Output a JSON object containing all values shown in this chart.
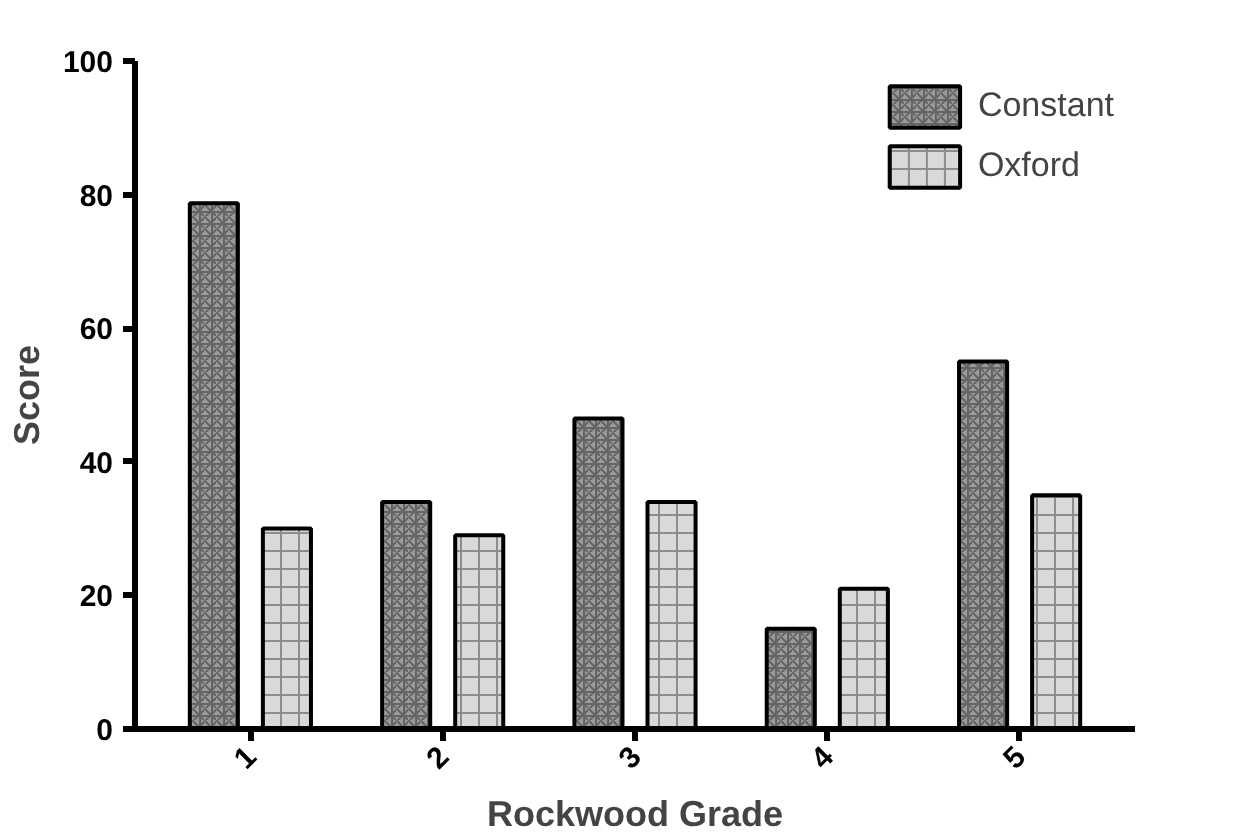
{
  "chart_data": {
    "type": "bar",
    "xlabel": "Rockwood Grade",
    "ylabel": "Score",
    "categories": [
      "1",
      "2",
      "3",
      "4",
      "5"
    ],
    "series": [
      {
        "name": "Constant",
        "color": "#9a9a9a",
        "values": [
          78.7,
          34,
          46.5,
          15,
          55
        ]
      },
      {
        "name": "Oxford",
        "color": "#d9d9d9",
        "values": [
          30,
          29,
          34,
          21,
          35
        ]
      }
    ],
    "ylim": [
      0,
      100
    ],
    "yticks": [
      0,
      20,
      40,
      60,
      80,
      100
    ],
    "grid": false,
    "legend": "top right"
  }
}
